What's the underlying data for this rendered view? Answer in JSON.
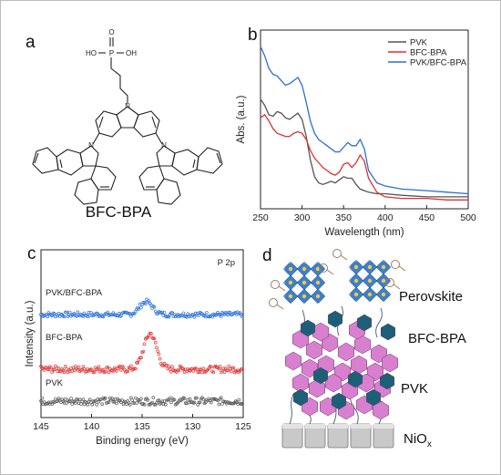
{
  "panels": {
    "a": {
      "letter": "a",
      "compound_name": "BFC-BPA",
      "atom_labels": {
        "phosphoryl_oxygen": "O",
        "phosphorus": "P",
        "hydroxyl_left": "HO",
        "hydroxyl_right": "OH",
        "nitrogen": "N"
      }
    },
    "b": {
      "letter": "b"
    },
    "c": {
      "letter": "c",
      "annotation": "P 2p"
    },
    "d": {
      "letter": "d",
      "labels": {
        "perovskite": "Perovskite",
        "bfc_bpa": "BFC-BPA",
        "pvk": "PVK",
        "nio_main": "NiO",
        "nio_sub": "x"
      }
    }
  },
  "colors": {
    "pvk": "#555555",
    "bfc_bpa": "#e03030",
    "pvk_bfc_bpa": "#2b6fd6",
    "hexagon_pink": "#d97fd0",
    "hexagon_teal": "#1e5f78",
    "octahedron": "#3f7fc8"
  },
  "chart_data": [
    {
      "type": "line",
      "panel": "b",
      "title": "",
      "xlabel": "Wavelength (nm)",
      "ylabel": "Abs. (a.u.)",
      "xlim": [
        250,
        500
      ],
      "xticks": [
        250,
        300,
        350,
        400,
        450,
        500
      ],
      "y_ticks_shown": false,
      "legend_position": "top-right",
      "series": [
        {
          "name": "PVK",
          "color": "#555555",
          "x": [
            250,
            255,
            260,
            265,
            270,
            275,
            280,
            285,
            290,
            295,
            300,
            305,
            310,
            315,
            320,
            325,
            330,
            335,
            340,
            345,
            350,
            355,
            360,
            365,
            370,
            375,
            380,
            390,
            400,
            420,
            450,
            475,
            500
          ],
          "y": [
            0.66,
            0.62,
            0.56,
            0.55,
            0.58,
            0.57,
            0.54,
            0.53,
            0.55,
            0.57,
            0.53,
            0.42,
            0.27,
            0.16,
            0.12,
            0.11,
            0.12,
            0.13,
            0.12,
            0.14,
            0.16,
            0.15,
            0.15,
            0.11,
            0.08,
            0.07,
            0.06,
            0.05,
            0.05,
            0.04,
            0.03,
            0.03,
            0.03
          ]
        },
        {
          "name": "BFC-BPA",
          "color": "#e03030",
          "x": [
            250,
            255,
            260,
            265,
            270,
            275,
            280,
            285,
            290,
            295,
            300,
            305,
            310,
            315,
            320,
            325,
            330,
            335,
            340,
            345,
            350,
            355,
            360,
            365,
            370,
            375,
            380,
            390,
            400,
            420,
            450,
            475,
            500
          ],
          "y": [
            0.54,
            0.56,
            0.52,
            0.47,
            0.44,
            0.43,
            0.42,
            0.42,
            0.44,
            0.45,
            0.44,
            0.4,
            0.33,
            0.28,
            0.25,
            0.22,
            0.2,
            0.18,
            0.17,
            0.19,
            0.24,
            0.25,
            0.22,
            0.25,
            0.3,
            0.26,
            0.15,
            0.06,
            0.03,
            0.02,
            0.02,
            0.01,
            0.01
          ]
        },
        {
          "name": "PVK/BFC-BPA",
          "color": "#2b6fd6",
          "x": [
            250,
            255,
            260,
            265,
            270,
            275,
            280,
            285,
            290,
            295,
            300,
            305,
            310,
            315,
            320,
            325,
            330,
            335,
            340,
            345,
            350,
            355,
            360,
            365,
            370,
            375,
            380,
            390,
            400,
            420,
            450,
            475,
            500
          ],
          "y": [
            1.0,
            0.94,
            0.86,
            0.82,
            0.81,
            0.78,
            0.75,
            0.76,
            0.78,
            0.8,
            0.75,
            0.64,
            0.52,
            0.44,
            0.4,
            0.38,
            0.36,
            0.34,
            0.32,
            0.32,
            0.35,
            0.38,
            0.36,
            0.36,
            0.4,
            0.34,
            0.2,
            0.12,
            0.1,
            0.08,
            0.07,
            0.06,
            0.05
          ]
        }
      ]
    },
    {
      "type": "scatter",
      "panel": "c",
      "title": "",
      "xlabel": "Binding energy (eV)",
      "ylabel": "Intensity (a.u.)",
      "xlim": [
        145,
        125
      ],
      "x_reversed": true,
      "xticks": [
        145,
        140,
        135,
        130,
        125
      ],
      "y_ticks_shown": false,
      "series": [
        {
          "name": "PVK/BFC-BPA",
          "color": "#2b6fd6",
          "baseline": 2.0,
          "peaks": [
            {
              "center": 134.6,
              "height": 0.18,
              "width": 0.9
            }
          ],
          "noise": 0.035
        },
        {
          "name": "BFC-BPA",
          "color": "#e03030",
          "baseline": 1.0,
          "peaks": [
            {
              "center": 134.2,
              "height": 0.5,
              "width": 0.9
            }
          ],
          "noise": 0.045
        },
        {
          "name": "PVK",
          "color": "#555555",
          "baseline": 0.0,
          "peaks": [],
          "noise": 0.05
        }
      ]
    }
  ]
}
